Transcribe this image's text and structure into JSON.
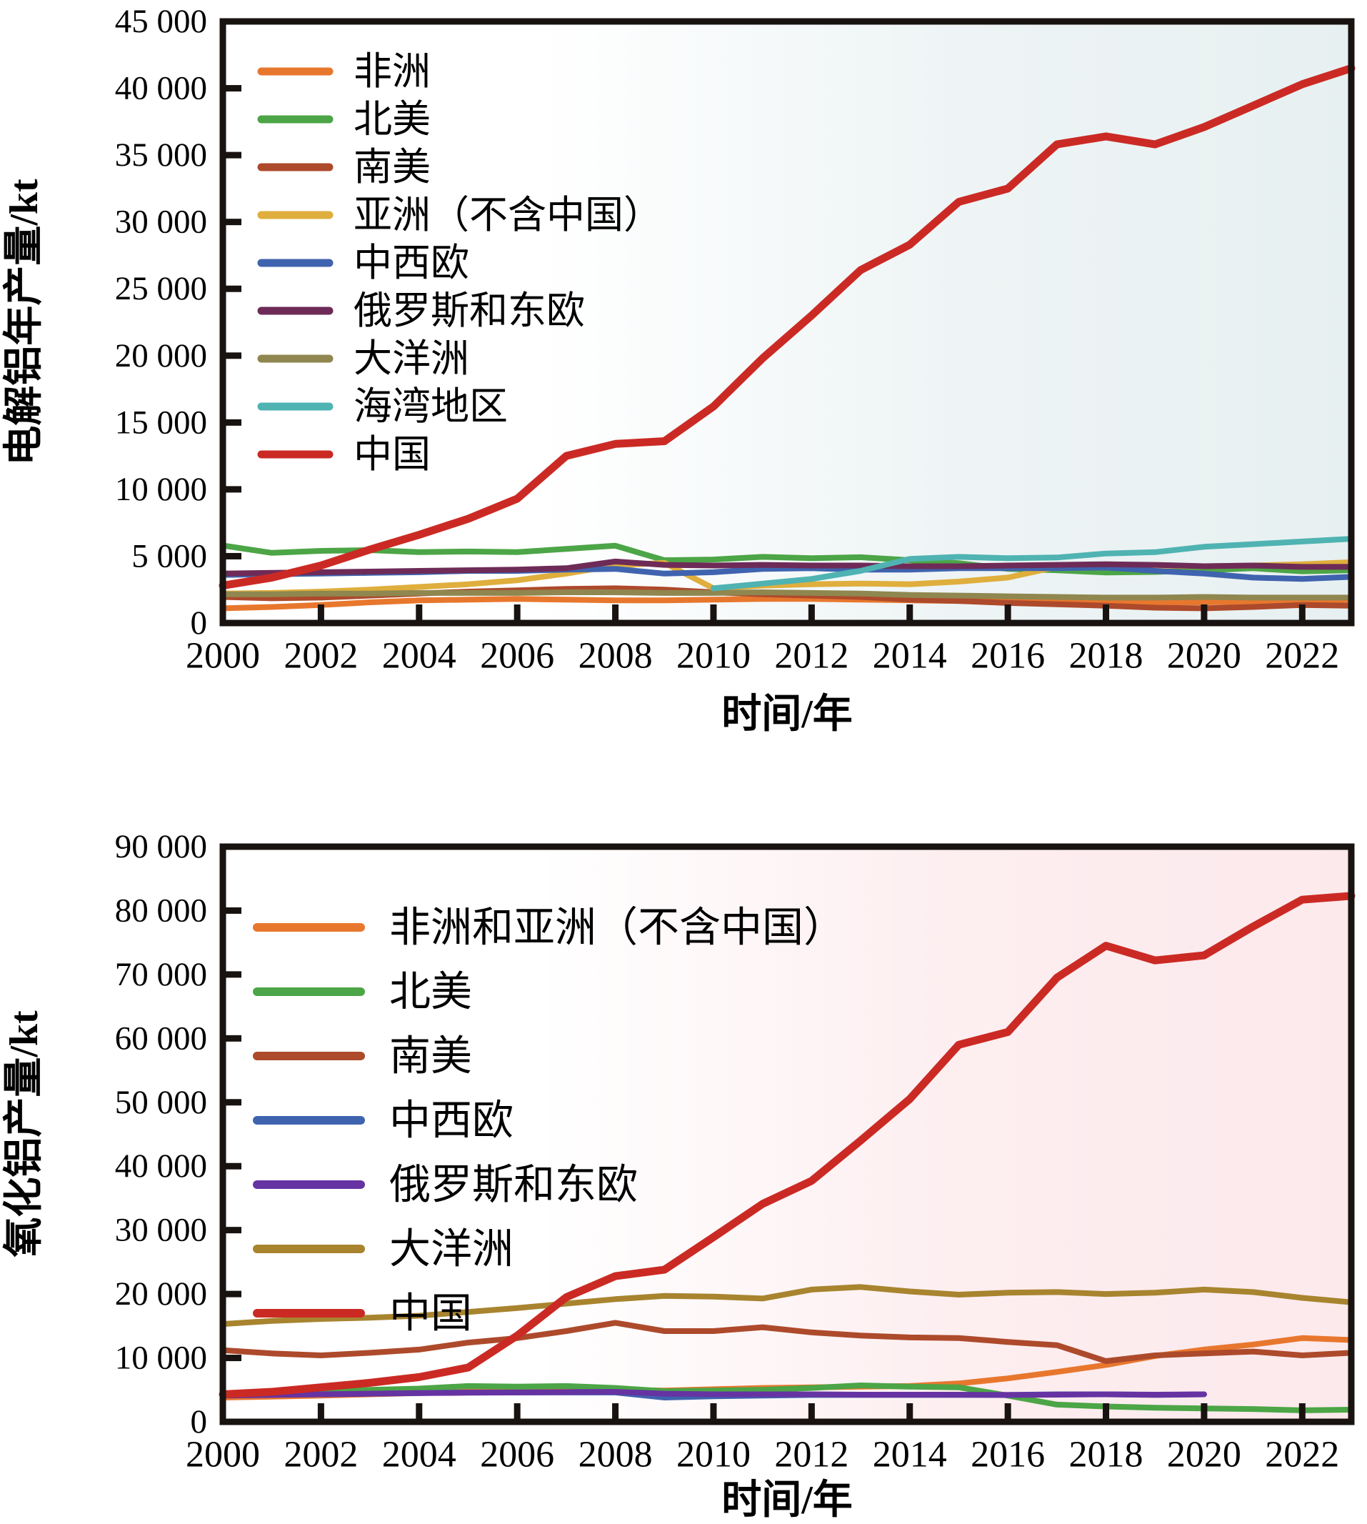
{
  "chart_data": [
    {
      "id": "electrolytic-aluminum",
      "type": "line",
      "title": "",
      "ylabel": "电解铝年产量/kt",
      "xlabel": "时间/年",
      "xlim": [
        2000,
        2023
      ],
      "ylim": [
        0,
        45000
      ],
      "grid": false,
      "legend_position": "upper-left-inside",
      "background_tint": "light-teal-gradient-to-right",
      "bg_gradient": [
        "#ffffff",
        "#ffffff",
        "#eef4f5",
        "#e7f0f1"
      ],
      "x": [
        2000,
        2001,
        2002,
        2003,
        2004,
        2005,
        2006,
        2007,
        2008,
        2009,
        2010,
        2011,
        2012,
        2013,
        2014,
        2015,
        2016,
        2017,
        2018,
        2019,
        2020,
        2021,
        2022,
        2023
      ],
      "x_ticks": [
        2000,
        2002,
        2004,
        2006,
        2008,
        2010,
        2012,
        2014,
        2016,
        2018,
        2020,
        2022
      ],
      "x_tick_labels": [
        "2000",
        "2002",
        "2004",
        "2006",
        "2008",
        "2010",
        "2012",
        "2014",
        "2016",
        "2018",
        "2020",
        "2022"
      ],
      "y_ticks": [
        0,
        5000,
        10000,
        15000,
        20000,
        25000,
        30000,
        35000,
        40000,
        45000
      ],
      "y_tick_labels": [
        "0",
        "5 000",
        "10 000",
        "15 000",
        "20 000",
        "25 000",
        "30 000",
        "35 000",
        "40 000",
        "45 000"
      ],
      "series": [
        {
          "name": "非洲",
          "color": "#E8772E",
          "width": 8,
          "values": [
            1100,
            1200,
            1350,
            1550,
            1700,
            1750,
            1800,
            1750,
            1700,
            1700,
            1750,
            1800,
            1800,
            1750,
            1700,
            1650,
            1650,
            1600,
            1600,
            1550,
            1550,
            1600,
            1650,
            1650
          ]
        },
        {
          "name": "北美",
          "color": "#4CA546",
          "width": 8,
          "values": [
            5800,
            5250,
            5400,
            5450,
            5300,
            5350,
            5300,
            5550,
            5780,
            4700,
            4750,
            4950,
            4850,
            4920,
            4700,
            4480,
            4050,
            3950,
            3780,
            3820,
            3950,
            4100,
            3870,
            3950
          ]
        },
        {
          "name": "南美",
          "color": "#AD4A2B",
          "width": 8,
          "values": [
            1950,
            1850,
            1900,
            2050,
            2200,
            2350,
            2450,
            2550,
            2600,
            2500,
            2300,
            2150,
            2050,
            1950,
            1750,
            1650,
            1500,
            1400,
            1300,
            1150,
            1100,
            1200,
            1350,
            1300
          ]
        },
        {
          "name": "亚洲（不含中国）",
          "color": "#DFAE3C",
          "width": 8,
          "values": [
            2200,
            2250,
            2350,
            2500,
            2700,
            2900,
            3200,
            3700,
            4300,
            4500,
            2600,
            2800,
            2900,
            2950,
            2900,
            3100,
            3400,
            4200,
            4400,
            4300,
            4250,
            4300,
            4400,
            4550
          ]
        },
        {
          "name": "中西欧",
          "color": "#3F63AE",
          "width": 8,
          "values": [
            3600,
            3650,
            3700,
            3750,
            3800,
            3900,
            3900,
            4000,
            4050,
            3700,
            3800,
            4050,
            4100,
            4000,
            4000,
            4100,
            4100,
            4100,
            4150,
            3900,
            3700,
            3400,
            3300,
            3450
          ]
        },
        {
          "name": "俄罗斯和东欧",
          "color": "#6E2B57",
          "width": 8,
          "values": [
            3700,
            3750,
            3800,
            3850,
            3900,
            3950,
            4000,
            4100,
            4600,
            4350,
            4300,
            4350,
            4300,
            4300,
            4250,
            4250,
            4300,
            4350,
            4400,
            4350,
            4250,
            4300,
            4200,
            4200
          ]
        },
        {
          "name": "大洋洲",
          "color": "#8F874F",
          "width": 8,
          "values": [
            2150,
            2150,
            2200,
            2200,
            2250,
            2250,
            2250,
            2300,
            2300,
            2250,
            2250,
            2300,
            2250,
            2200,
            2100,
            2050,
            2000,
            1950,
            1900,
            1900,
            1950,
            1900,
            1900,
            1900
          ]
        },
        {
          "name": "海湾地区",
          "color": "#4FB3B2",
          "width": 8,
          "values": [
            null,
            null,
            null,
            null,
            null,
            null,
            null,
            null,
            null,
            null,
            2600,
            2950,
            3300,
            3900,
            4800,
            4950,
            4850,
            4900,
            5200,
            5300,
            5700,
            5900,
            6100,
            6300
          ]
        },
        {
          "name": "中国",
          "color": "#CB2A24",
          "width": 11,
          "values": [
            2800,
            3400,
            4300,
            5500,
            6600,
            7800,
            9300,
            12500,
            13400,
            13600,
            16200,
            19800,
            23000,
            26400,
            28300,
            31500,
            32500,
            35800,
            36400,
            35800,
            37100,
            38700,
            40300,
            41500
          ]
        }
      ]
    },
    {
      "id": "alumina",
      "type": "line",
      "title": "",
      "ylabel": "氧化铝产量/kt",
      "xlabel": "时间/年",
      "xlim": [
        2000,
        2023
      ],
      "ylim": [
        0,
        90000
      ],
      "grid": false,
      "legend_position": "upper-left-inside",
      "background_tint": "light-pink-gradient-to-right",
      "bg_gradient": [
        "#ffffff",
        "#ffffff",
        "#fdeef0",
        "#fce9ec"
      ],
      "x": [
        2000,
        2001,
        2002,
        2003,
        2004,
        2005,
        2006,
        2007,
        2008,
        2009,
        2010,
        2011,
        2012,
        2013,
        2014,
        2015,
        2016,
        2017,
        2018,
        2019,
        2020,
        2021,
        2022,
        2023
      ],
      "x_ticks": [
        2000,
        2002,
        2004,
        2006,
        2008,
        2010,
        2012,
        2014,
        2016,
        2018,
        2020,
        2022
      ],
      "x_tick_labels": [
        "2000",
        "2002",
        "2004",
        "2006",
        "2008",
        "2010",
        "2012",
        "2014",
        "2016",
        "2018",
        "2020",
        "2022"
      ],
      "y_ticks": [
        0,
        10000,
        20000,
        30000,
        40000,
        50000,
        60000,
        70000,
        80000,
        90000
      ],
      "y_tick_labels": [
        "0",
        "10 000",
        "20 000",
        "30 000",
        "40 000",
        "50 000",
        "60 000",
        "70 000",
        "80 000",
        "90 000"
      ],
      "series": [
        {
          "name": "非洲和亚洲（不含中国）",
          "color": "#E8772E",
          "width": 8,
          "values": [
            3800,
            3950,
            4100,
            4300,
            4500,
            4800,
            5100,
            5100,
            5000,
            4900,
            5100,
            5300,
            5400,
            5500,
            5600,
            6000,
            6800,
            7800,
            8900,
            10300,
            11300,
            12100,
            13100,
            12800
          ]
        },
        {
          "name": "北美",
          "color": "#4CA546",
          "width": 8,
          "values": [
            4400,
            4500,
            4700,
            5000,
            5200,
            5600,
            5500,
            5600,
            5300,
            4800,
            4900,
            5000,
            5300,
            5700,
            5500,
            5400,
            4100,
            2700,
            2400,
            2200,
            2100,
            2000,
            1800,
            1900
          ]
        },
        {
          "name": "南美",
          "color": "#AD4A2B",
          "width": 8,
          "values": [
            11200,
            10700,
            10400,
            10800,
            11300,
            12400,
            13100,
            14200,
            15500,
            14200,
            14200,
            14800,
            14000,
            13500,
            13200,
            13100,
            12500,
            12000,
            9500,
            10400,
            10700,
            11000,
            10400,
            10800
          ]
        },
        {
          "name": "中西欧",
          "color": "#3F63AE",
          "width": 8,
          "values": [
            4200,
            4250,
            4300,
            4400,
            4500,
            4600,
            4600,
            4600,
            4600,
            3800,
            4000,
            4100,
            4200,
            4200,
            4200,
            4200,
            4200,
            4300,
            4300,
            4200,
            4300,
            null,
            null,
            null
          ]
        },
        {
          "name": "俄罗斯和东欧",
          "color": "#6633A2",
          "width": 8,
          "values": [
            4100,
            4200,
            4300,
            4400,
            4500,
            4550,
            4600,
            4650,
            4700,
            4400,
            4300,
            4300,
            4300,
            4250,
            4250,
            4250,
            4200,
            4250,
            4300,
            4250,
            4300,
            null,
            null,
            null
          ]
        },
        {
          "name": "大洋洲",
          "color": "#A8842F",
          "width": 8,
          "values": [
            15300,
            15800,
            16100,
            16300,
            16600,
            17200,
            17800,
            18500,
            19200,
            19700,
            19600,
            19300,
            20700,
            21100,
            20400,
            19900,
            20200,
            20300,
            20000,
            20200,
            20700,
            20300,
            19400,
            18700
          ]
        },
        {
          "name": "中国",
          "color": "#CB2A24",
          "width": 11,
          "values": [
            4300,
            4700,
            5400,
            6100,
            7000,
            8500,
            13500,
            19500,
            22800,
            23800,
            28900,
            34100,
            37700,
            44000,
            50500,
            59000,
            61000,
            69500,
            74500,
            72200,
            73000,
            77500,
            81700,
            82300
          ]
        }
      ]
    }
  ]
}
